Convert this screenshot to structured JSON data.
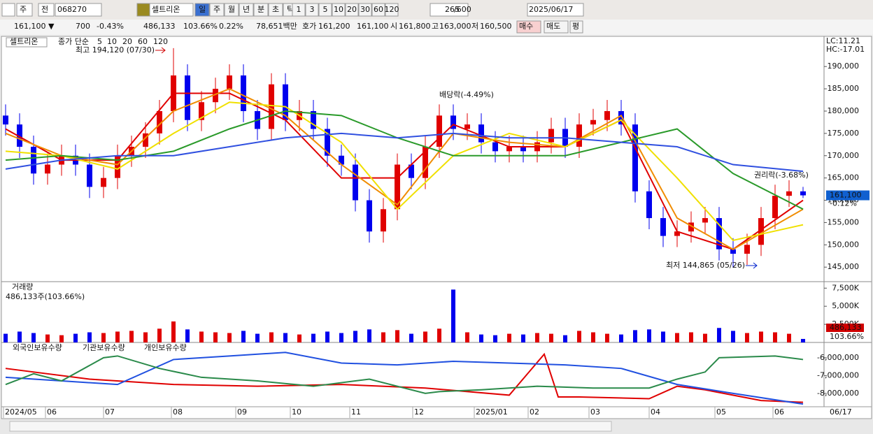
{
  "toolbar": {
    "market": "주",
    "prev": "전",
    "code": "068270",
    "name": "셀트리온",
    "periods": [
      "일",
      "주",
      "월",
      "년",
      "분",
      "초",
      "틱"
    ],
    "intervals": [
      "1",
      "3",
      "5",
      "10",
      "20",
      "30",
      "60",
      "120"
    ],
    "count": "265",
    "max": "/600",
    "date": "2025/06/17"
  },
  "quote": {
    "price": "161,100 ▼",
    "change": "700",
    "change_pct": "-0.43%",
    "volume": "486,133",
    "volume_pct": "103.66%",
    "turnover": "0.22%",
    "amount": "78,651백만",
    "bid_label": "호가",
    "ask": "161,200",
    "bid": "161,100",
    "open_label": "시",
    "open": "161,800",
    "high_label": "고",
    "high": "163,000",
    "low_label": "저",
    "low": "160,500",
    "buy": "매수",
    "sell": "매도",
    "avg": "평"
  },
  "chart_data": [
    {
      "type": "candlestick",
      "title": "셀트리온",
      "legend_label": "종가 단순",
      "open": [
        179000,
        177000,
        172000,
        166000,
        168000,
        170000,
        168000,
        163000,
        165000,
        170000,
        172000,
        175000,
        180000,
        188000,
        178000,
        182000,
        185000,
        188000,
        180000,
        176000,
        186000,
        178000,
        180000,
        176000,
        170000,
        168000,
        160000,
        153000,
        158000,
        168000,
        165000,
        172000,
        179000,
        176000,
        177000,
        173000,
        171000,
        172000,
        171000,
        173000,
        176000,
        172000,
        177000,
        178000,
        180000,
        177000,
        162000,
        156000,
        152000,
        153000,
        155000,
        156000,
        149000,
        148000,
        150000,
        156000,
        161000,
        162000
      ],
      "high": [
        181500,
        179500,
        174500,
        170500,
        172500,
        172500,
        170500,
        167500,
        172500,
        174500,
        177500,
        182500,
        194120,
        190500,
        184500,
        187500,
        190500,
        190500,
        182500,
        188500,
        188500,
        182500,
        182500,
        178500,
        172500,
        170500,
        162500,
        160500,
        170500,
        170500,
        174500,
        181500,
        181500,
        179500,
        179500,
        175500,
        174500,
        174500,
        175500,
        178500,
        178500,
        179500,
        180500,
        182500,
        182500,
        179500,
        164500,
        158500,
        155500,
        157500,
        158500,
        158500,
        151500,
        152500,
        158500,
        163500,
        164500,
        163000
      ],
      "low": [
        174500,
        169500,
        163500,
        163500,
        165500,
        165500,
        160500,
        160500,
        162500,
        167500,
        169500,
        172500,
        177500,
        175500,
        175500,
        179500,
        182500,
        177500,
        173500,
        173500,
        175500,
        175500,
        173500,
        167500,
        165500,
        157500,
        150500,
        150500,
        155500,
        162500,
        162500,
        169500,
        173500,
        173500,
        170500,
        168500,
        168500,
        168500,
        168500,
        170500,
        169500,
        169500,
        174500,
        175500,
        174500,
        159500,
        153500,
        149500,
        149500,
        150500,
        152500,
        146500,
        144865,
        145500,
        147500,
        153500,
        158500,
        160500
      ],
      "close": [
        177000,
        172000,
        166000,
        168000,
        170000,
        168000,
        163000,
        165000,
        170000,
        172000,
        175000,
        180000,
        188000,
        178000,
        182000,
        185000,
        188000,
        180000,
        176000,
        186000,
        178000,
        180000,
        176000,
        170000,
        168000,
        160000,
        153000,
        158000,
        168000,
        165000,
        172000,
        179000,
        176000,
        177000,
        173000,
        171000,
        172000,
        171000,
        173000,
        176000,
        172000,
        177000,
        178000,
        180000,
        177000,
        162000,
        156000,
        152000,
        153000,
        155000,
        156000,
        149000,
        148000,
        150000,
        156000,
        161000,
        162000,
        161100
      ],
      "up_color": "#e00000",
      "down_color": "#0000ee",
      "series": [
        {
          "name": "5",
          "color": "#e00000",
          "x": [
            0,
            4,
            8,
            12,
            16,
            20,
            24,
            28,
            32,
            36,
            40,
            44,
            48,
            52,
            57
          ],
          "values": [
            176000,
            169000,
            169000,
            184000,
            184000,
            178000,
            165000,
            165000,
            177000,
            172000,
            172000,
            178000,
            153000,
            149000,
            160000
          ]
        },
        {
          "name": "10",
          "color": "#f08c00",
          "x": [
            0,
            4,
            8,
            12,
            16,
            20,
            24,
            28,
            32,
            36,
            40,
            44,
            48,
            52,
            57
          ],
          "values": [
            175000,
            170000,
            168000,
            180000,
            185000,
            179000,
            168000,
            159000,
            175000,
            173000,
            172000,
            179000,
            156000,
            149000,
            158000
          ]
        },
        {
          "name": "20",
          "color": "#f0e000",
          "x": [
            0,
            4,
            8,
            12,
            16,
            20,
            24,
            28,
            32,
            36,
            40,
            44,
            48,
            52,
            57
          ],
          "values": [
            171000,
            170000,
            167000,
            175000,
            182000,
            181000,
            173000,
            158000,
            170000,
            175000,
            172000,
            178000,
            165000,
            151000,
            154500
          ]
        },
        {
          "name": "60",
          "color": "#2a9a2a",
          "x": [
            0,
            4,
            8,
            12,
            16,
            20,
            24,
            28,
            32,
            36,
            40,
            44,
            48,
            52,
            57
          ],
          "values": [
            169000,
            170000,
            169000,
            171000,
            176000,
            180000,
            179000,
            174000,
            170000,
            170000,
            170000,
            173000,
            176000,
            166000,
            158000
          ]
        },
        {
          "name": "120",
          "color": "#3050e0",
          "x": [
            0,
            4,
            8,
            12,
            16,
            20,
            24,
            28,
            32,
            36,
            40,
            44,
            48,
            52,
            57
          ],
          "values": [
            167000,
            169000,
            170000,
            170000,
            172000,
            174000,
            175000,
            174000,
            175000,
            174000,
            174000,
            173000,
            172000,
            168000,
            166500
          ]
        }
      ],
      "annotations": [
        "최고 194,120 (07/30)",
        "배당락(-4.49%)",
        "권리락(-3.68%)",
        "최저 144,865 (05/26)"
      ],
      "lc": "LC:11.21",
      "hc": "HC:-17.01",
      "current": {
        "value": 161100,
        "label": "161,100"
      },
      "current_change": "-0.12%",
      "ylim": [
        141900,
        196300
      ],
      "yticks": [
        {
          "value": 145000,
          "label": "145,000"
        },
        {
          "value": 150000,
          "label": "150,000"
        },
        {
          "value": 155000,
          "label": "155,000"
        },
        {
          "value": 160000,
          "label": "160,000"
        },
        {
          "value": 165000,
          "label": "165,000"
        },
        {
          "value": 170000,
          "label": "170,000"
        },
        {
          "value": 175000,
          "label": "175,000"
        },
        {
          "value": 180000,
          "label": "180,000"
        },
        {
          "value": 185000,
          "label": "185,000"
        },
        {
          "value": 190000,
          "label": "190,000"
        }
      ]
    },
    {
      "type": "bar",
      "title": "거래량",
      "subtitle": "486,133주(103.66%)",
      "values": [
        1200000,
        1500000,
        1300000,
        1100000,
        1000000,
        1200000,
        1400000,
        1300000,
        1500000,
        1600000,
        1400000,
        1900000,
        2900000,
        1800000,
        1500000,
        1400000,
        1300000,
        1600000,
        1200000,
        1400000,
        1300000,
        1100000,
        1200000,
        1500000,
        1300000,
        1600000,
        1800000,
        1400000,
        1700000,
        1200000,
        1500000,
        1900000,
        7300000,
        1400000,
        1100000,
        1000000,
        1200000,
        1100000,
        1300000,
        1200000,
        1000000,
        1600000,
        1400000,
        1200000,
        1100000,
        1700000,
        1800000,
        1500000,
        1300000,
        1400000,
        1200000,
        2000000,
        1600000,
        1300000,
        1500000,
        1400000,
        1200000,
        486133
      ],
      "current": {
        "value": 486133,
        "label": "486,133"
      },
      "ratio_label": "103.66%",
      "ylim": [
        0,
        8300000
      ],
      "yticks": [
        {
          "value": 2500000,
          "label": "2,500K"
        },
        {
          "value": 5000000,
          "label": "5,000K"
        },
        {
          "value": 7500000,
          "label": "7,500K"
        }
      ]
    },
    {
      "type": "line",
      "series": [
        {
          "name": "외국인보유수량",
          "color": "#e00000",
          "x": [
            0,
            6,
            12,
            18,
            24,
            30,
            36,
            38.5,
            39.5,
            41,
            46,
            48,
            50,
            54,
            57
          ],
          "values": [
            -6600000,
            -7200000,
            -7500000,
            -7600000,
            -7500000,
            -7700000,
            -8100000,
            -5800000,
            -8200000,
            -8200000,
            -8300000,
            -7600000,
            -7800000,
            -8400000,
            -8500000
          ]
        },
        {
          "name": "기관보유수량",
          "color": "#2050e0",
          "x": [
            0,
            4,
            8,
            12,
            16,
            20,
            24,
            28,
            32,
            36,
            40,
            44,
            48,
            52,
            57
          ],
          "values": [
            -7100000,
            -7300000,
            -7500000,
            -6100000,
            -5900000,
            -5700000,
            -6300000,
            -6400000,
            -6200000,
            -6300000,
            -6400000,
            -6600000,
            -7500000,
            -8000000,
            -8600000
          ]
        },
        {
          "name": "개인보유수량",
          "color": "#2a8a4a",
          "x": [
            0,
            2,
            4,
            7,
            8,
            11,
            14,
            18,
            22,
            26,
            30,
            31,
            34,
            38,
            42,
            46,
            48,
            50,
            51,
            55,
            57
          ],
          "values": [
            -7500000,
            -6900000,
            -7300000,
            -6000000,
            -5900000,
            -6600000,
            -7100000,
            -7300000,
            -7600000,
            -7200000,
            -8000000,
            -7900000,
            -7800000,
            -7600000,
            -7700000,
            -7700000,
            -7200000,
            -6800000,
            -6000000,
            -5900000,
            -6100000
          ]
        }
      ],
      "ylim": [
        -8750000,
        -5220000
      ],
      "yticks": [
        {
          "value": -6000000,
          "label": "-6,000,000"
        },
        {
          "value": -7000000,
          "label": "-7,000,000"
        },
        {
          "value": -8000000,
          "label": "-8,000,000"
        }
      ],
      "xticks": [
        {
          "value": -0.15,
          "label": "2024/05"
        },
        {
          "value": 2.85,
          "label": "06"
        },
        {
          "value": 7,
          "label": "07"
        },
        {
          "value": 11.85,
          "label": "08"
        },
        {
          "value": 16.45,
          "label": "09"
        },
        {
          "value": 20.35,
          "label": "10"
        },
        {
          "value": 24.6,
          "label": "11"
        },
        {
          "value": 29.1,
          "label": "12"
        },
        {
          "value": 33.5,
          "label": "2025/01"
        },
        {
          "value": 37.35,
          "label": "02"
        },
        {
          "value": 41.7,
          "label": "03"
        },
        {
          "value": 46,
          "label": "04"
        },
        {
          "value": 50.7,
          "label": "05"
        },
        {
          "value": 54.85,
          "label": "06"
        }
      ],
      "end_label": "06/17"
    }
  ]
}
